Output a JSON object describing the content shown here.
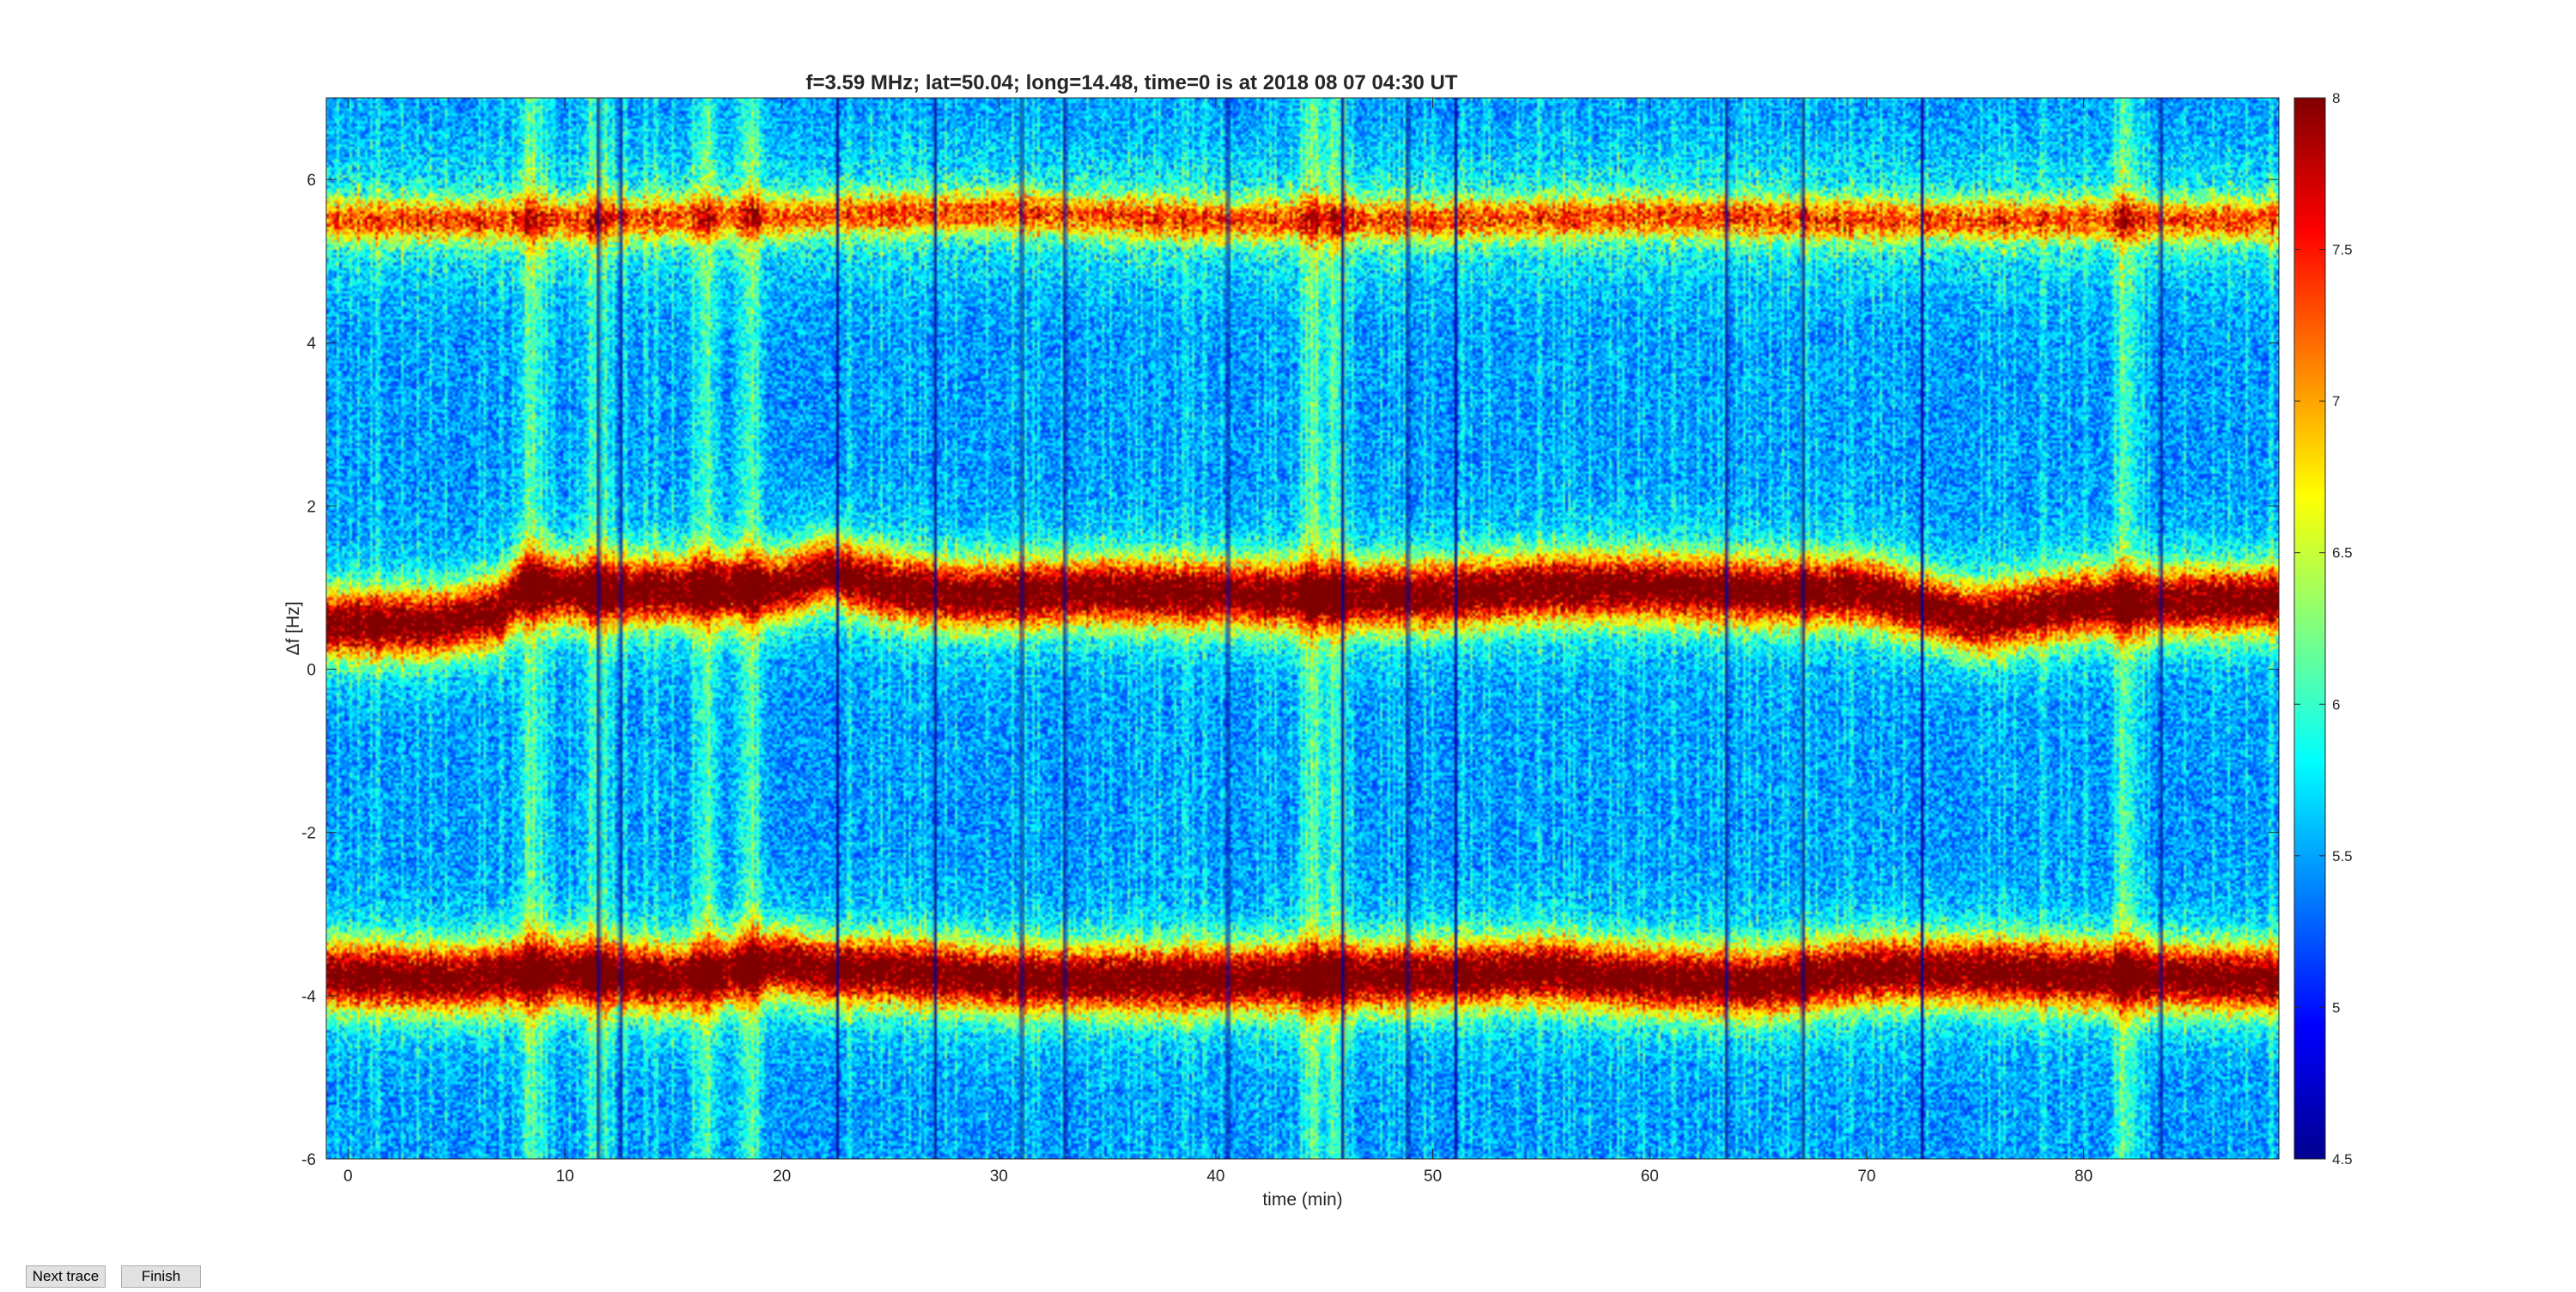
{
  "window": {
    "buttons": {
      "next_trace": "Next trace",
      "finish": "Finish"
    }
  },
  "chart_data": {
    "type": "heatmap",
    "title": "f=3.59 MHz;  lat=50.04; long=14.48, time=0 is at 2018 08 07 04:30 UT",
    "xlabel": "time (min)",
    "ylabel": "Δf [Hz]",
    "xlim": [
      -1,
      89
    ],
    "ylim": [
      -6,
      7
    ],
    "xticks": [
      0,
      10,
      20,
      30,
      40,
      50,
      60,
      70,
      80
    ],
    "yticks": [
      -6,
      -4,
      -2,
      0,
      2,
      4,
      6
    ],
    "colormap": "jet",
    "clim": [
      4.5,
      8
    ],
    "colorbar_ticks": [
      4.5,
      5,
      5.5,
      6,
      6.5,
      7,
      7.5,
      8
    ],
    "grid": false,
    "legend": "none",
    "traces": [
      {
        "x": [
          -1,
          4,
          7,
          8,
          12,
          20,
          22,
          25,
          28,
          35,
          45,
          50,
          55,
          60,
          65,
          70,
          75,
          80,
          89
        ],
        "y": [
          0.55,
          0.55,
          0.7,
          1.0,
          0.95,
          1.0,
          1.2,
          1.0,
          0.9,
          0.95,
          0.9,
          0.9,
          1.0,
          1.0,
          0.95,
          0.95,
          0.6,
          0.8,
          0.85
        ]
      },
      {
        "x": [
          -1,
          5,
          10,
          15,
          20,
          22,
          25,
          30,
          40,
          50,
          55,
          60,
          65,
          70,
          75,
          80,
          89
        ],
        "y": [
          -3.75,
          -3.8,
          -3.7,
          -3.8,
          -3.6,
          -3.7,
          -3.7,
          -3.8,
          -3.8,
          -3.75,
          -3.7,
          -3.8,
          -3.85,
          -3.7,
          -3.7,
          -3.75,
          -3.8
        ]
      },
      {
        "x": [
          -1,
          10,
          20,
          30,
          40,
          50,
          60,
          70,
          80,
          89
        ],
        "y": [
          5.5,
          5.5,
          5.55,
          5.6,
          5.5,
          5.5,
          5.55,
          5.5,
          5.5,
          5.5
        ]
      }
    ],
    "bright_columns_min": [
      8.5,
      11.5,
      16.5,
      18.5,
      44.5,
      45.5,
      82
    ],
    "dark_gap_columns_min": [
      11.5,
      12.5,
      22.5,
      27,
      31,
      33,
      40.5,
      45.8,
      48.8,
      51,
      63.5,
      67,
      72.5,
      83.5
    ]
  }
}
